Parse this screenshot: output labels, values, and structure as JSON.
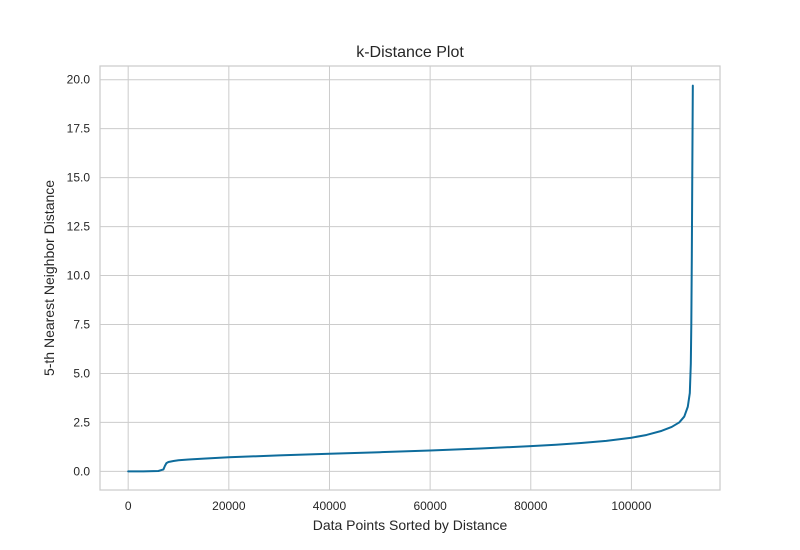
{
  "chart_data": {
    "type": "line",
    "title": "k-Distance Plot",
    "xlabel": "Data Points Sorted by Distance",
    "ylabel": "5-th Nearest Neighbor Distance",
    "xlim": [
      -5600,
      117600
    ],
    "ylim": [
      -0.95,
      20.7
    ],
    "xticks": [
      0,
      20000,
      40000,
      60000,
      80000,
      100000
    ],
    "xtick_labels": [
      "0",
      "20000",
      "40000",
      "60000",
      "80000",
      "100000"
    ],
    "yticks": [
      0,
      2.5,
      5,
      7.5,
      10,
      12.5,
      15,
      17.5,
      20
    ],
    "ytick_labels": [
      "0.0",
      "2.5",
      "5.0",
      "7.5",
      "10.0",
      "12.5",
      "15.0",
      "17.5",
      "20.0"
    ],
    "grid": true,
    "line_color": "#0e6c9c",
    "series": [
      {
        "x": [
          0,
          3000,
          6000,
          7000,
          7300,
          7600,
          8000,
          9000,
          10000,
          12000,
          15000,
          20000,
          30000,
          40000,
          50000,
          60000,
          70000,
          80000,
          85000,
          90000,
          95000,
          100000,
          103000,
          106000,
          108000,
          109500,
          110500,
          111200,
          111600,
          111800,
          111900,
          112000,
          112100,
          112200
        ],
        "y": [
          0.0,
          0.0,
          0.02,
          0.1,
          0.28,
          0.42,
          0.48,
          0.53,
          0.57,
          0.61,
          0.65,
          0.72,
          0.82,
          0.9,
          0.98,
          1.07,
          1.17,
          1.29,
          1.36,
          1.45,
          1.56,
          1.72,
          1.86,
          2.07,
          2.27,
          2.5,
          2.8,
          3.3,
          4.0,
          5.5,
          7.5,
          11.0,
          15.5,
          19.7
        ]
      }
    ]
  }
}
